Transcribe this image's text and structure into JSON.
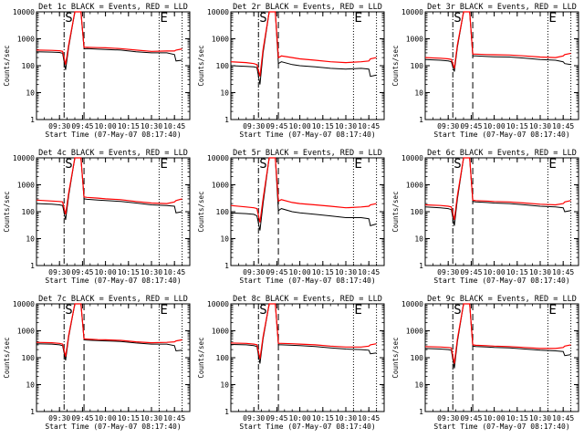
{
  "chart_data": {
    "type": "line",
    "layout": "3x3 grid",
    "ylabel": "Counts/sec",
    "ylim": [
      1,
      10000
    ],
    "yscale": "log",
    "xlabel": "Start Time (07-May-07 08:17:40)",
    "x_tick_labels": [
      "09:30",
      "09:45",
      "10:00",
      "10:15",
      "10:30",
      "10:45"
    ],
    "xlim": [
      "09:15",
      "10:55"
    ],
    "y_tick_labels": [
      "10000",
      "1000",
      "100",
      "10",
      "1"
    ],
    "y_tick_values": [
      10000,
      1000,
      100,
      10,
      1
    ],
    "series_colors": {
      "events": "#000000",
      "lld": "#ff0000"
    },
    "vertical_markers": {
      "dash_dot": "09:33",
      "dashed": "09:46",
      "dotted": "10:35",
      "right_dotted": "10:50"
    },
    "marker_letters": [
      "S",
      "E"
    ],
    "panels": [
      {
        "title": "Det 1c BLACK = Events, RED = LLD",
        "x": [
          "09:15",
          "09:25",
          "09:30",
          "09:32",
          "09:34",
          "09:36",
          "09:40",
          "09:44",
          "09:46",
          "09:48",
          "09:55",
          "10:00",
          "10:10",
          "10:20",
          "10:30",
          "10:40",
          "10:45",
          "10:46",
          "10:50"
        ],
        "events": [
          330,
          320,
          310,
          290,
          70,
          500,
          10000,
          10000,
          420,
          430,
          410,
          400,
          380,
          330,
          300,
          300,
          260,
          150,
          160
        ],
        "lld": [
          380,
          370,
          360,
          340,
          110,
          600,
          10000,
          10000,
          480,
          480,
          470,
          460,
          430,
          380,
          340,
          350,
          350,
          380,
          420
        ]
      },
      {
        "title": "Det 2r BLACK = Events, RED = LLD",
        "x": [
          "09:15",
          "09:25",
          "09:30",
          "09:32",
          "09:34",
          "09:36",
          "09:40",
          "09:44",
          "09:46",
          "09:48",
          "09:55",
          "10:00",
          "10:10",
          "10:20",
          "10:30",
          "10:40",
          "10:45",
          "10:46",
          "10:50"
        ],
        "events": [
          100,
          95,
          90,
          85,
          20,
          300,
          10000,
          10000,
          120,
          140,
          110,
          100,
          90,
          80,
          75,
          80,
          75,
          40,
          45
        ],
        "lld": [
          140,
          130,
          120,
          110,
          40,
          400,
          10000,
          10000,
          200,
          230,
          200,
          180,
          160,
          140,
          130,
          140,
          150,
          180,
          200
        ]
      },
      {
        "title": "Det 3r BLACK = Events, RED = LLD",
        "x": [
          "09:15",
          "09:25",
          "09:30",
          "09:32",
          "09:34",
          "09:36",
          "09:40",
          "09:44",
          "09:46",
          "09:48",
          "09:55",
          "10:00",
          "10:10",
          "10:20",
          "10:30",
          "10:40",
          "10:45",
          "10:46",
          "10:50"
        ],
        "events": [
          170,
          160,
          150,
          140,
          60,
          500,
          10000,
          10000,
          230,
          230,
          220,
          215,
          210,
          190,
          170,
          160,
          140,
          120,
          110
        ],
        "lld": [
          200,
          190,
          180,
          170,
          80,
          600,
          10000,
          10000,
          270,
          270,
          260,
          255,
          250,
          230,
          210,
          200,
          230,
          260,
          290
        ]
      },
      {
        "title": "Det 4c BLACK = Events, RED = LLD",
        "x": [
          "09:15",
          "09:25",
          "09:30",
          "09:32",
          "09:34",
          "09:36",
          "09:40",
          "09:44",
          "09:46",
          "09:48",
          "09:55",
          "10:00",
          "10:10",
          "10:20",
          "10:30",
          "10:40",
          "10:45",
          "10:46",
          "10:50"
        ],
        "events": [
          200,
          190,
          180,
          170,
          50,
          400,
          10000,
          10000,
          300,
          290,
          270,
          260,
          240,
          210,
          180,
          170,
          160,
          90,
          100
        ],
        "lld": [
          270,
          250,
          240,
          230,
          80,
          500,
          10000,
          10000,
          350,
          340,
          320,
          300,
          280,
          240,
          210,
          200,
          230,
          260,
          300
        ]
      },
      {
        "title": "Det 5r BLACK = Events, RED = LLD",
        "x": [
          "09:15",
          "09:25",
          "09:30",
          "09:32",
          "09:34",
          "09:36",
          "09:40",
          "09:44",
          "09:46",
          "09:48",
          "09:55",
          "10:00",
          "10:10",
          "10:20",
          "10:30",
          "10:40",
          "10:45",
          "10:46",
          "10:50"
        ],
        "events": [
          90,
          85,
          80,
          70,
          20,
          200,
          10000,
          10000,
          110,
          130,
          100,
          90,
          80,
          70,
          60,
          60,
          55,
          30,
          35
        ],
        "lld": [
          170,
          150,
          140,
          130,
          40,
          300,
          10000,
          10000,
          250,
          280,
          220,
          200,
          180,
          160,
          140,
          150,
          160,
          180,
          200
        ]
      },
      {
        "title": "Det 6c BLACK = Events, RED = LLD",
        "x": [
          "09:15",
          "09:25",
          "09:30",
          "09:32",
          "09:34",
          "09:36",
          "09:40",
          "09:44",
          "09:46",
          "09:48",
          "09:55",
          "10:00",
          "10:10",
          "10:20",
          "10:30",
          "10:40",
          "10:45",
          "10:46",
          "10:50"
        ],
        "events": [
          150,
          140,
          130,
          120,
          30,
          300,
          10000,
          10000,
          240,
          230,
          220,
          210,
          200,
          180,
          160,
          150,
          140,
          100,
          110
        ],
        "lld": [
          180,
          170,
          160,
          150,
          50,
          400,
          10000,
          10000,
          270,
          260,
          250,
          240,
          230,
          210,
          190,
          180,
          200,
          230,
          260
        ]
      },
      {
        "title": "Det 7c BLACK = Events, RED = LLD",
        "x": [
          "09:15",
          "09:25",
          "09:30",
          "09:32",
          "09:34",
          "09:36",
          "09:40",
          "09:44",
          "09:46",
          "09:48",
          "09:55",
          "10:00",
          "10:10",
          "10:20",
          "10:30",
          "10:40",
          "10:45",
          "10:46",
          "10:50"
        ],
        "events": [
          330,
          320,
          300,
          280,
          80,
          600,
          10000,
          10000,
          460,
          450,
          430,
          420,
          400,
          350,
          320,
          320,
          280,
          180,
          190
        ],
        "lld": [
          370,
          360,
          340,
          320,
          110,
          700,
          10000,
          10000,
          500,
          490,
          470,
          460,
          440,
          390,
          360,
          370,
          390,
          420,
          460
        ]
      },
      {
        "title": "Det 8c BLACK = Events, RED = LLD",
        "x": [
          "09:15",
          "09:25",
          "09:30",
          "09:32",
          "09:34",
          "09:36",
          "09:40",
          "09:44",
          "09:46",
          "09:48",
          "09:55",
          "10:00",
          "10:10",
          "10:20",
          "10:30",
          "10:40",
          "10:45",
          "10:46",
          "10:50"
        ],
        "events": [
          310,
          300,
          280,
          260,
          60,
          500,
          10000,
          10000,
          300,
          300,
          290,
          280,
          260,
          230,
          210,
          200,
          190,
          140,
          150
        ],
        "lld": [
          350,
          340,
          320,
          300,
          90,
          600,
          10000,
          10000,
          340,
          340,
          330,
          320,
          300,
          270,
          250,
          250,
          270,
          300,
          330
        ]
      },
      {
        "title": "Det 9c BLACK = Events, RED = LLD",
        "x": [
          "09:15",
          "09:25",
          "09:30",
          "09:32",
          "09:34",
          "09:36",
          "09:40",
          "09:44",
          "09:46",
          "09:48",
          "09:55",
          "10:00",
          "10:10",
          "10:20",
          "10:30",
          "10:40",
          "10:45",
          "10:46",
          "10:50"
        ],
        "events": [
          220,
          210,
          200,
          190,
          40,
          400,
          10000,
          10000,
          270,
          260,
          250,
          240,
          230,
          210,
          190,
          180,
          170,
          120,
          130
        ],
        "lld": [
          260,
          250,
          240,
          230,
          60,
          500,
          10000,
          10000,
          300,
          290,
          280,
          270,
          260,
          240,
          220,
          220,
          240,
          270,
          300
        ]
      }
    ]
  }
}
